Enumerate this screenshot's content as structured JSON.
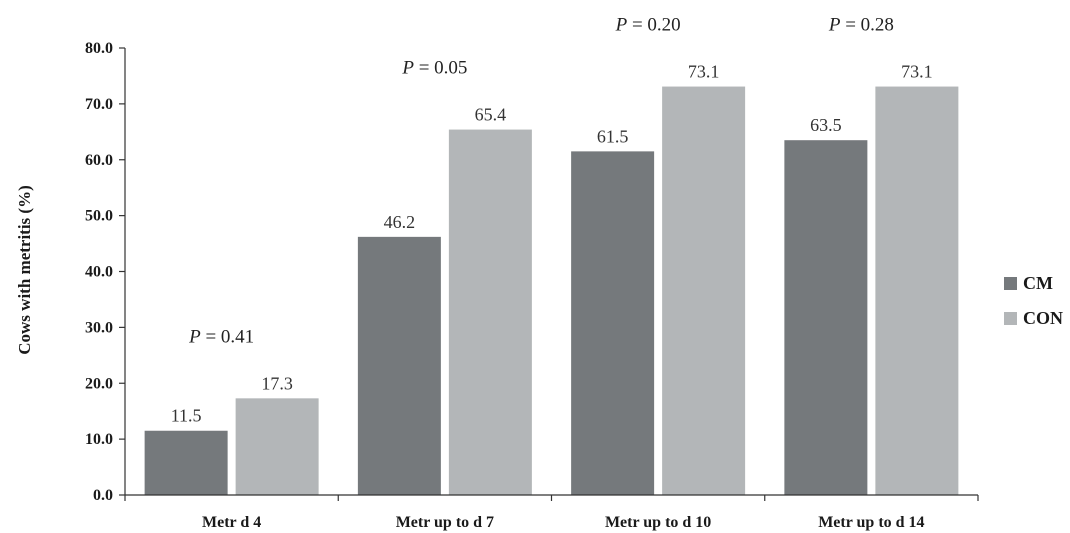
{
  "chart_data": {
    "type": "bar",
    "title": "",
    "xlabel": "",
    "ylabel": "Cows with metritis (%)",
    "ylim": [
      0,
      80
    ],
    "yticks": [
      "0.0",
      "10.0",
      "20.0",
      "30.0",
      "40.0",
      "50.0",
      "60.0",
      "70.0",
      "80.0"
    ],
    "categories": [
      "Metr d 4",
      "Metr up to d 7",
      "Metr up to d 10",
      "Metr up to d 14"
    ],
    "series": [
      {
        "name": "CM",
        "color": "#75797c",
        "values": [
          11.5,
          46.2,
          61.5,
          63.5
        ],
        "labels": [
          "11.5",
          "46.2",
          "61.5",
          "63.5"
        ]
      },
      {
        "name": "CON",
        "color": "#b3b6b8",
        "values": [
          17.3,
          65.4,
          73.1,
          73.1
        ],
        "labels": [
          "17.3",
          "65.4",
          "73.1",
          "73.1"
        ]
      }
    ],
    "p_values": [
      {
        "prefix": "P",
        "text": " = 0.41"
      },
      {
        "prefix": "P",
        "text": " = 0.05"
      },
      {
        "prefix": "P",
        "text": " = 0.20"
      },
      {
        "prefix": "P",
        "text": " = 0.28"
      }
    ],
    "grid": false,
    "legend": "right"
  }
}
